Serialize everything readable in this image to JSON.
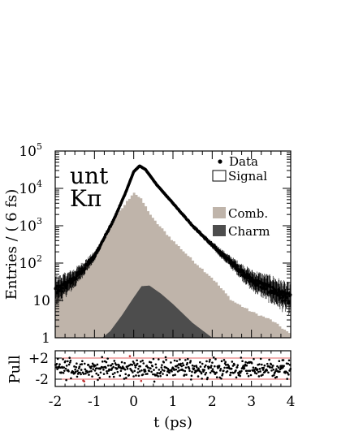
{
  "chart_data": [
    {
      "type": "histogram",
      "panel": "main",
      "xlim": [
        -2,
        4
      ],
      "ylim": [
        1,
        100000
      ],
      "yscale": "log",
      "ylabel": "Entries / ( 6 fs)",
      "annotation_line1": "unt",
      "annotation_line2": "Kπ",
      "legend_position": "top-right",
      "legend": {
        "data": "Data",
        "signal": "Signal",
        "comb": "Comb.",
        "charm": "Charm"
      },
      "x_ticks": [
        -2,
        -1,
        0,
        1,
        2,
        3,
        4
      ],
      "y_ticks": [
        {
          "value": 1,
          "label": "1"
        },
        {
          "value": 10,
          "label": "10"
        },
        {
          "value": 100,
          "label": "10",
          "exp": "2"
        },
        {
          "value": 1000,
          "label": "10",
          "exp": "3"
        },
        {
          "value": 10000,
          "label": "10",
          "exp": "4"
        },
        {
          "value": 100000,
          "label": "10",
          "exp": "5"
        }
      ],
      "series": [
        {
          "name": "Data",
          "points_t": [
            -1.9,
            -1.5,
            -1.0,
            -0.5,
            -0.2,
            0.0,
            0.15,
            0.3,
            0.6,
            1.0,
            1.5,
            2.0,
            2.5,
            3.0,
            3.5,
            3.9
          ],
          "points_y": [
            20,
            40,
            150,
            1500,
            8000,
            28000,
            40000,
            32000,
            12000,
            4000,
            1000,
            300,
            100,
            35,
            20,
            12
          ]
        },
        {
          "name": "Comb.",
          "points_t": [
            -2.0,
            -1.5,
            -1.0,
            -0.5,
            -0.2,
            0.0,
            0.2,
            0.5,
            1.0,
            1.5,
            2.0,
            2.5,
            3.0,
            3.5,
            3.9,
            4.0
          ],
          "points_y": [
            15,
            40,
            150,
            1500,
            4000,
            8000,
            5000,
            1500,
            400,
            120,
            40,
            10,
            5,
            3,
            1.5,
            1.2
          ]
        },
        {
          "name": "Charm",
          "points_t": [
            -0.8,
            -0.6,
            -0.3,
            0.0,
            0.2,
            0.4,
            0.7,
            1.0,
            1.5,
            2.0
          ],
          "points_y": [
            1,
            1.5,
            4,
            12,
            24,
            25,
            15,
            8,
            2.5,
            1
          ]
        }
      ]
    },
    {
      "type": "scatter",
      "panel": "pull",
      "xlim": [
        -2,
        4
      ],
      "ylim": [
        -3,
        3
      ],
      "xlabel": "t (ps)",
      "ylabel": "Pull",
      "y_ticks": [
        {
          "value": 2,
          "label": "+2"
        },
        {
          "value": -2,
          "label": "-2"
        }
      ],
      "band": [
        -2,
        2
      ],
      "band_color": "#e06060"
    }
  ],
  "colors": {
    "comb": "#bfb4aa",
    "charm": "#4d4d4d",
    "data": "#000000",
    "pull_band": "#e06060"
  }
}
